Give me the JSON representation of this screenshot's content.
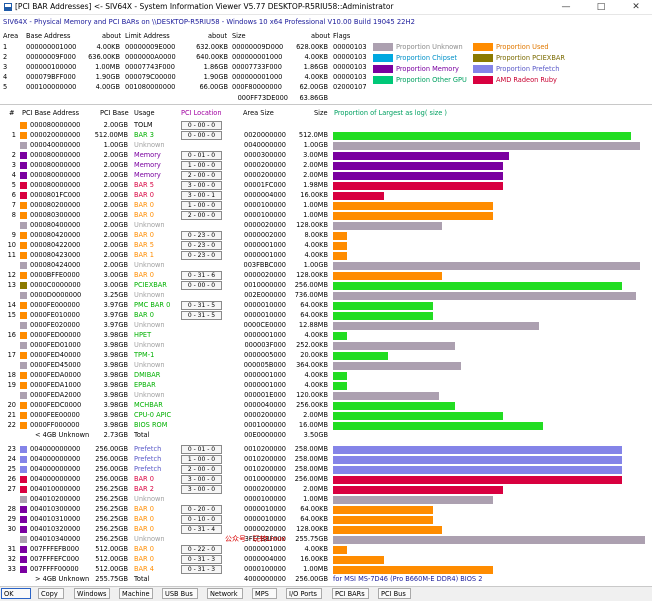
{
  "window": {
    "title": "[PCI BAR Addresses] <- SIV64X - System Information Viewer V5.77 DESKTOP-R5RIU58::Administrator",
    "minimize": "—",
    "maximize": "□",
    "close": "✕"
  },
  "description": "SIV64X - Physical Memory and PCI BARs on \\\\DESKTOP-R5RIU58 - Windows 10 x64 Professional  V10.00  Build 19045  22H2",
  "area_table": {
    "headers": [
      "Area",
      "Base Address",
      "about",
      "Limit Address",
      "about",
      "Size",
      "about",
      "Flags"
    ],
    "rows": [
      [
        "1",
        "000000001000",
        "4.00KB",
        "00000009E000",
        "632.00KB",
        "00000009D000",
        "628.00KB",
        "00000103"
      ],
      [
        "2",
        "00000009F000",
        "636.00KB",
        "0000000A0000",
        "640.00KB",
        "000000001000",
        "4.00KB",
        "00000103"
      ],
      [
        "3",
        "000000100000",
        "1.00MB",
        "00007743F000",
        "1.86GB",
        "00007733F000",
        "1.86GB",
        "00000103"
      ],
      [
        "4",
        "000079BFF000",
        "1.90GB",
        "000079C00000",
        "1.90GB",
        "000000001000",
        "4.00KB",
        "00000103"
      ],
      [
        "5",
        "000100000000",
        "4.00GB",
        "001080000000",
        "66.00GB",
        "000F80000000",
        "62.00GB",
        "02000107"
      ]
    ],
    "total_size": "000FF73DE000",
    "total_about": "63.86GB"
  },
  "legend": [
    {
      "label": "Proportion Unknown",
      "color": "#aca0b0",
      "text_color": "#8c8c8c"
    },
    {
      "label": "Proportion Used",
      "color": "#ff8c00",
      "text_color": "#e07800"
    },
    {
      "label": "Proportion Chipset",
      "color": "#00a8e0",
      "text_color": "#0090c8"
    },
    {
      "label": "Proportion PCIEXBAR",
      "color": "#8b7a00",
      "text_color": "#7a6a00"
    },
    {
      "label": "Proportion Memory",
      "color": "#7a00a0",
      "text_color": "#7a00a0"
    },
    {
      "label": "Proportion Prefetch",
      "color": "#8484e8",
      "text_color": "#5a5ac8"
    },
    {
      "label": "Proportion Other GPU",
      "color": "#00c878",
      "text_color": "#00a060"
    },
    {
      "label": "AMD Radeon Ruby",
      "color": "#d80040",
      "text_color": "#c80030"
    }
  ],
  "bar_table": {
    "headers": {
      "num": "#",
      "addr": "PCI Base Address",
      "pcibase": "PCI Base",
      "usage": "Usage",
      "loc": "PCI Location",
      "areasize": "Area Size",
      "size": "Size",
      "prop": "Proportion of Largest as log( size )"
    },
    "rows": [
      {
        "num": "",
        "color": "#ff8c00",
        "addr": "000080000000",
        "base": "2.00GB",
        "usage": "TOLM",
        "ucolor": "#000000",
        "loc": "0 - 00 - 0",
        "area": "",
        "size": "",
        "bar": 0
      },
      {
        "num": "1",
        "color": "#ff8c00",
        "addr": "000020000000",
        "base": "512.00MB",
        "usage": "BAR 3",
        "ucolor": "#00b000",
        "loc": "0 - 00 - 0",
        "area": "0020000000",
        "size": "512.0MB",
        "bar": 0.956,
        "bcolor": "#22dd22"
      },
      {
        "num": "",
        "color": "#aca0b0",
        "addr": "000040000000",
        "base": "1.00GB",
        "usage": "Unknown",
        "ucolor": "#a0a0a0",
        "loc": "",
        "area": "0040000000",
        "size": "1.00GB",
        "bar": 0.984,
        "bcolor": "#aca0b0"
      },
      {
        "num": "2",
        "color": "#7a00a0",
        "addr": "000080000000",
        "base": "2.00GB",
        "usage": "Memory",
        "ucolor": "#7a00a0",
        "loc": "0 - 01 - 0",
        "area": "0000300000",
        "size": "3.00MB",
        "bar": 0.564,
        "bcolor": "#7a00a0"
      },
      {
        "num": "3",
        "color": "#7a00a0",
        "addr": "000080000000",
        "base": "2.00GB",
        "usage": "Memory",
        "ucolor": "#7a00a0",
        "loc": "1 - 00 - 0",
        "area": "0000200000",
        "size": "2.00MB",
        "bar": 0.544,
        "bcolor": "#7a00a0"
      },
      {
        "num": "4",
        "color": "#7a00a0",
        "addr": "000080000000",
        "base": "2.00GB",
        "usage": "Memory",
        "ucolor": "#7a00a0",
        "loc": "2 - 00 - 0",
        "area": "0000200000",
        "size": "2.00MB",
        "bar": 0.544,
        "bcolor": "#7a00a0"
      },
      {
        "num": "5",
        "color": "#d80040",
        "addr": "000080000000",
        "base": "2.00GB",
        "usage": "BAR 5",
        "ucolor": "#d80040",
        "loc": "3 - 00 - 0",
        "area": "00001FC000",
        "size": "1.98MB",
        "bar": 0.544,
        "bcolor": "#d80040"
      },
      {
        "num": "6",
        "color": "#d80040",
        "addr": "0000801FC000",
        "base": "2.00GB",
        "usage": "BAR 0",
        "ucolor": "#d80040",
        "loc": "3 - 00 - 1",
        "area": "0000004000",
        "size": "16.00KB",
        "bar": 0.165,
        "bcolor": "#d80040"
      },
      {
        "num": "7",
        "color": "#ff8c00",
        "addr": "000080200000",
        "base": "2.00GB",
        "usage": "BAR 0",
        "ucolor": "#ff8c00",
        "loc": "1 - 00 - 0",
        "area": "0000100000",
        "size": "1.00MB",
        "bar": 0.512,
        "bcolor": "#ff8c00"
      },
      {
        "num": "8",
        "color": "#ff8c00",
        "addr": "000080300000",
        "base": "2.00GB",
        "usage": "BAR 0",
        "ucolor": "#ff8c00",
        "loc": "2 - 00 - 0",
        "area": "0000100000",
        "size": "1.00MB",
        "bar": 0.512,
        "bcolor": "#ff8c00"
      },
      {
        "num": "",
        "color": "#aca0b0",
        "addr": "000080400000",
        "base": "2.00GB",
        "usage": "Unknown",
        "ucolor": "#a0a0a0",
        "loc": "",
        "area": "0000020000",
        "size": "128.00KB",
        "bar": 0.35,
        "bcolor": "#aca0b0"
      },
      {
        "num": "9",
        "color": "#ff8c00",
        "addr": "000080420000",
        "base": "2.00GB",
        "usage": "BAR 0",
        "ucolor": "#ff8c00",
        "loc": "0 - 23 - 0",
        "area": "0000002000",
        "size": "8.00KB",
        "bar": 0.045,
        "bcolor": "#ff8c00"
      },
      {
        "num": "10",
        "color": "#ff8c00",
        "addr": "000080422000",
        "base": "2.00GB",
        "usage": "BAR 5",
        "ucolor": "#ff8c00",
        "loc": "0 - 23 - 0",
        "area": "0000001000",
        "size": "4.00KB",
        "bar": 0.045,
        "bcolor": "#ff8c00"
      },
      {
        "num": "11",
        "color": "#ff8c00",
        "addr": "000080423000",
        "base": "2.00GB",
        "usage": "BAR 1",
        "ucolor": "#ff8c00",
        "loc": "0 - 23 - 0",
        "area": "0000001000",
        "size": "4.00KB",
        "bar": 0.045,
        "bcolor": "#ff8c00"
      },
      {
        "num": "",
        "color": "#aca0b0",
        "addr": "000080424000",
        "base": "2.00GB",
        "usage": "Unknown",
        "ucolor": "#a0a0a0",
        "loc": "",
        "area": "003FBBC000",
        "size": "1.00GB",
        "bar": 0.984,
        "bcolor": "#aca0b0"
      },
      {
        "num": "12",
        "color": "#ff8c00",
        "addr": "0000BFFE0000",
        "base": "3.00GB",
        "usage": "BAR 0",
        "ucolor": "#ff8c00",
        "loc": "0 - 31 - 6",
        "area": "0000020000",
        "size": "128.00KB",
        "bar": 0.35,
        "bcolor": "#ff8c00"
      },
      {
        "num": "13",
        "color": "#8b7a00",
        "addr": "0000C0000000",
        "base": "3.00GB",
        "usage": "PCIEXBAR",
        "ucolor": "#00b000",
        "loc": "0 - 00 - 0",
        "area": "0010000000",
        "size": "256.00MB",
        "bar": 0.925,
        "bcolor": "#22dd22"
      },
      {
        "num": "",
        "color": "#aca0b0",
        "addr": "0000D0000000",
        "base": "3.25GB",
        "usage": "Unknown",
        "ucolor": "#a0a0a0",
        "loc": "",
        "area": "002E000000",
        "size": "736.00MB",
        "bar": 0.97,
        "bcolor": "#aca0b0"
      },
      {
        "num": "14",
        "color": "#ff8c00",
        "addr": "0000FE000000",
        "base": "3.97GB",
        "usage": "PMC BAR 0",
        "ucolor": "#00b000",
        "loc": "0 - 31 - 5",
        "area": "0000010000",
        "size": "64.00KB",
        "bar": 0.32,
        "bcolor": "#22dd22"
      },
      {
        "num": "15",
        "color": "#ff8c00",
        "addr": "0000FE010000",
        "base": "3.97GB",
        "usage": "BAR 0",
        "ucolor": "#00b000",
        "loc": "0 - 31 - 5",
        "area": "0000010000",
        "size": "64.00KB",
        "bar": 0.32,
        "bcolor": "#22dd22"
      },
      {
        "num": "",
        "color": "#aca0b0",
        "addr": "0000FE020000",
        "base": "3.97GB",
        "usage": "Unknown",
        "ucolor": "#a0a0a0",
        "loc": "",
        "area": "0000CE0000",
        "size": "12.88MB",
        "bar": 0.66,
        "bcolor": "#aca0b0"
      },
      {
        "num": "16",
        "color": "#ff8c00",
        "addr": "0000FED00000",
        "base": "3.98GB",
        "usage": "HPET",
        "ucolor": "#00b000",
        "loc": "",
        "area": "0000001000",
        "size": "4.00KB",
        "bar": 0.045,
        "bcolor": "#22dd22"
      },
      {
        "num": "",
        "color": "#aca0b0",
        "addr": "0000FED01000",
        "base": "3.98GB",
        "usage": "Unknown",
        "ucolor": "#a0a0a0",
        "loc": "",
        "area": "000003F000",
        "size": "252.00KB",
        "bar": 0.39,
        "bcolor": "#aca0b0"
      },
      {
        "num": "17",
        "color": "#ff8c00",
        "addr": "0000FED40000",
        "base": "3.98GB",
        "usage": "TPM-1",
        "ucolor": "#00b000",
        "loc": "",
        "area": "0000005000",
        "size": "20.00KB",
        "bar": 0.175,
        "bcolor": "#22dd22"
      },
      {
        "num": "",
        "color": "#aca0b0",
        "addr": "0000FED45000",
        "base": "3.98GB",
        "usage": "Unknown",
        "ucolor": "#a0a0a0",
        "loc": "",
        "area": "000005B000",
        "size": "364.00KB",
        "bar": 0.41,
        "bcolor": "#aca0b0"
      },
      {
        "num": "18",
        "color": "#ff8c00",
        "addr": "0000FEDA0000",
        "base": "3.98GB",
        "usage": "DMIBAR",
        "ucolor": "#00b000",
        "loc": "",
        "area": "0000001000",
        "size": "4.00KB",
        "bar": 0.045,
        "bcolor": "#22dd22"
      },
      {
        "num": "19",
        "color": "#ff8c00",
        "addr": "0000FEDA1000",
        "base": "3.98GB",
        "usage": "EPBAR",
        "ucolor": "#00b000",
        "loc": "",
        "area": "0000001000",
        "size": "4.00KB",
        "bar": 0.045,
        "bcolor": "#22dd22"
      },
      {
        "num": "",
        "color": "#aca0b0",
        "addr": "0000FEDA2000",
        "base": "3.98GB",
        "usage": "Unknown",
        "ucolor": "#a0a0a0",
        "loc": "",
        "area": "000001E000",
        "size": "120.00KB",
        "bar": 0.34,
        "bcolor": "#aca0b0"
      },
      {
        "num": "20",
        "color": "#ff8c00",
        "addr": "0000FEDC0000",
        "base": "3.98GB",
        "usage": "MCHBAR",
        "ucolor": "#00b000",
        "loc": "",
        "area": "0000040000",
        "size": "256.00KB",
        "bar": 0.39,
        "bcolor": "#22dd22"
      },
      {
        "num": "21",
        "color": "#ff8c00",
        "addr": "0000FEE00000",
        "base": "3.98GB",
        "usage": "CPU-0 APIC",
        "ucolor": "#00b000",
        "loc": "",
        "area": "0000200000",
        "size": "2.00MB",
        "bar": 0.544,
        "bcolor": "#22dd22"
      },
      {
        "num": "22",
        "color": "#ff8c00",
        "addr": "0000FF000000",
        "base": "3.98GB",
        "usage": "BIOS ROM",
        "ucolor": "#00b000",
        "loc": "",
        "area": "0001000000",
        "size": "16.00MB",
        "bar": 0.674,
        "bcolor": "#22dd22"
      }
    ],
    "below4_label": "< 4GB Unknown",
    "below4_base": "2.73GB",
    "below4_usage": "Total",
    "below4_area": "00E0000000",
    "below4_size": "3.50GB",
    "rows2": [
      {
        "num": "23",
        "color": "#8484e8",
        "addr": "004000000000",
        "base": "256.00GB",
        "usage": "Prefetch",
        "ucolor": "#5a5ac8",
        "loc": "0 - 01 - 0",
        "area": "0010200000",
        "size": "258.00MB",
        "bar": 0.927,
        "bcolor": "#8484e8"
      },
      {
        "num": "24",
        "color": "#8484e8",
        "addr": "004000000000",
        "base": "256.00GB",
        "usage": "Prefetch",
        "ucolor": "#5a5ac8",
        "loc": "1 - 00 - 0",
        "area": "0010200000",
        "size": "258.00MB",
        "bar": 0.927,
        "bcolor": "#8484e8"
      },
      {
        "num": "25",
        "color": "#8484e8",
        "addr": "004000000000",
        "base": "256.00GB",
        "usage": "Prefetch",
        "ucolor": "#5a5ac8",
        "loc": "2 - 00 - 0",
        "area": "0010200000",
        "size": "258.00MB",
        "bar": 0.927,
        "bcolor": "#8484e8"
      },
      {
        "num": "26",
        "color": "#d80040",
        "addr": "004000000000",
        "base": "256.00GB",
        "usage": "BAR 0",
        "ucolor": "#d80040",
        "loc": "3 - 00 - 0",
        "area": "0010000000",
        "size": "256.00MB",
        "bar": 0.925,
        "bcolor": "#d80040"
      },
      {
        "num": "27",
        "color": "#d80040",
        "addr": "004010000000",
        "base": "256.25GB",
        "usage": "BAR 2",
        "ucolor": "#d80040",
        "loc": "3 - 00 - 0",
        "area": "0000200000",
        "size": "2.00MB",
        "bar": 0.544,
        "bcolor": "#d80040"
      },
      {
        "num": "",
        "color": "#aca0b0",
        "addr": "004010200000",
        "base": "256.25GB",
        "usage": "Unknown",
        "ucolor": "#a0a0a0",
        "loc": "",
        "area": "0000100000",
        "size": "1.00MB",
        "bar": 0.512,
        "bcolor": "#aca0b0"
      },
      {
        "num": "28",
        "color": "#7a00a0",
        "addr": "004010300000",
        "base": "256.25GB",
        "usage": "BAR 0",
        "ucolor": "#ff8c00",
        "loc": "0 - 20 - 0",
        "area": "0000010000",
        "size": "64.00KB",
        "bar": 0.32,
        "bcolor": "#ff8c00"
      },
      {
        "num": "29",
        "color": "#7a00a0",
        "addr": "004010310000",
        "base": "256.25GB",
        "usage": "BAR 0",
        "ucolor": "#ff8c00",
        "loc": "0 - 10 - 0",
        "area": "0000010000",
        "size": "64.00KB",
        "bar": 0.32,
        "bcolor": "#ff8c00"
      },
      {
        "num": "30",
        "color": "#7a00a0",
        "addr": "004010320000",
        "base": "256.25GB",
        "usage": "BAR 0",
        "ucolor": "#ff8c00",
        "loc": "0 - 31 - 4",
        "area": "0000020000",
        "size": "128.00KB",
        "bar": 0.35,
        "bcolor": "#ff8c00"
      },
      {
        "num": "",
        "color": "#aca0b0",
        "addr": "004010340000",
        "base": "256.25GB",
        "usage": "Unknown",
        "ucolor": "#a0a0a0",
        "loc": "",
        "area": "3FEFBBF000",
        "size": "255.75GB",
        "bar": 1.0,
        "bcolor": "#aca0b0"
      },
      {
        "num": "31",
        "color": "#7a00a0",
        "addr": "007FFFEFB000",
        "base": "512.00GB",
        "usage": "BAR 0",
        "ucolor": "#ff8c00",
        "loc": "0 - 22 - 0",
        "area": "0000001000",
        "size": "4.00KB",
        "bar": 0.045,
        "bcolor": "#ff8c00"
      },
      {
        "num": "32",
        "color": "#7a00a0",
        "addr": "007FFFEFC000",
        "base": "512.00GB",
        "usage": "BAR 0",
        "ucolor": "#ff8c00",
        "loc": "0 - 31 - 3",
        "area": "0000004000",
        "size": "16.00KB",
        "bar": 0.165,
        "bcolor": "#ff8c00"
      },
      {
        "num": "33",
        "color": "#7a00a0",
        "addr": "007FFFF00000",
        "base": "512.00GB",
        "usage": "BAR 4",
        "ucolor": "#ff8c00",
        "loc": "0 - 31 - 3",
        "area": "0000100000",
        "size": "1.00MB",
        "bar": 0.512,
        "bcolor": "#ff8c00"
      }
    ],
    "above4_label": "> 4GB Unknown",
    "above4_base": "255.75GB",
    "above4_usage": "Total",
    "above4_area": "4000000000",
    "above4_size": "256.00GB",
    "mobo": "for MSI MS-7D46 (Pro B660M-E DDR4) BIOS 2"
  },
  "watermark": "公众号 · 玩转Linux",
  "bottom_buttons": [
    "OK",
    "Copy",
    "Windows",
    "Machine",
    "USB Bus",
    "Network",
    "MPS",
    "I/O Ports",
    "PCI BARs",
    "PCI Bus"
  ]
}
